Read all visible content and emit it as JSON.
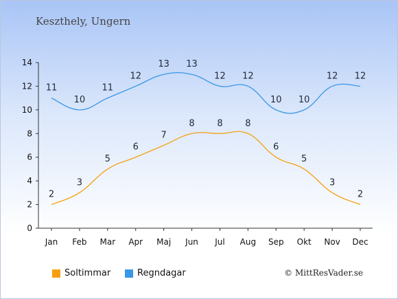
{
  "location": "Keszthely, Ungern",
  "copyright": "© MittResVader.se",
  "chart_data": {
    "type": "line",
    "categories": [
      "Jan",
      "Feb",
      "Mar",
      "Apr",
      "Maj",
      "Jun",
      "Jul",
      "Aug",
      "Sep",
      "Okt",
      "Nov",
      "Dec"
    ],
    "ylim": [
      0,
      14
    ],
    "yticks": [
      0,
      2,
      4,
      6,
      8,
      10,
      12,
      14
    ],
    "grid": false,
    "legend_placement": "bottom-left",
    "series": [
      {
        "name": "Soltimmar",
        "color": "#f5a010",
        "values": [
          2,
          3,
          5,
          6,
          7,
          8,
          8,
          8,
          6,
          5,
          3,
          2
        ]
      },
      {
        "name": "Regndagar",
        "color": "#3a97e6",
        "values": [
          11,
          10,
          11,
          12,
          13,
          13,
          12,
          12,
          10,
          10,
          12,
          12
        ]
      }
    ]
  }
}
